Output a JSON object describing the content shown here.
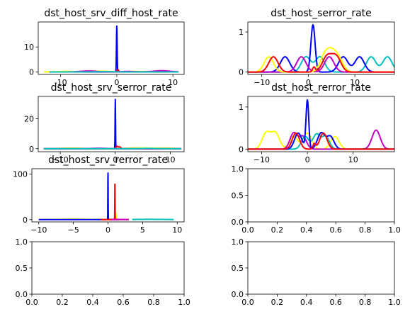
{
  "chart_data": [
    {
      "type": "line",
      "title": "dst_host_srv_diff_host_rate",
      "xlim": [
        -14,
        12
      ],
      "ylim": [
        -1,
        20
      ],
      "x_ticks": [
        -10,
        0,
        10
      ],
      "x_ticklabels": [
        "-10",
        "0",
        "10"
      ],
      "y_ticks": [
        0,
        10
      ],
      "y_ticklabels": [
        "0",
        "10"
      ],
      "series": [
        {
          "color": "#0000ff",
          "kind": "gauss",
          "peaks": [
            {
              "mu": 0.0,
              "sigma": 0.06,
              "amp": 18.5
            }
          ],
          "range": [
            -12,
            11
          ]
        },
        {
          "color": "#ffff00",
          "kind": "gauss",
          "peaks": [
            {
              "mu": -9,
              "sigma": 1.6,
              "amp": 0.2
            },
            {
              "mu": -3,
              "sigma": 1.6,
              "amp": 0.3
            },
            {
              "mu": 3,
              "sigma": 1.6,
              "amp": 0.2
            },
            {
              "mu": 8,
              "sigma": 1.6,
              "amp": 0.2
            }
          ],
          "range": [
            -13,
            11
          ]
        },
        {
          "color": "#ff0000",
          "kind": "gauss",
          "peaks": [
            {
              "mu": 0.2,
              "sigma": 0.15,
              "amp": 0.9
            },
            {
              "mu": -4,
              "sigma": 1.5,
              "amp": 0.15
            }
          ],
          "range": [
            -12,
            11
          ]
        },
        {
          "color": "#c000c0",
          "kind": "gauss",
          "peaks": [
            {
              "mu": -5,
              "sigma": 1.4,
              "amp": 0.4
            },
            {
              "mu": 8,
              "sigma": 1.4,
              "amp": 0.5
            },
            {
              "mu": 2,
              "sigma": 1.2,
              "amp": 0.2
            }
          ],
          "range": [
            -12,
            11
          ]
        },
        {
          "color": "#00bfbf",
          "kind": "gauss",
          "peaks": [
            {
              "mu": -2,
              "sigma": 1.5,
              "amp": 0.1
            }
          ],
          "range": [
            -12,
            11
          ]
        }
      ]
    },
    {
      "type": "line",
      "title": "dst_host_serror_rate",
      "xlim": [
        -13,
        18.5
      ],
      "ylim": [
        -0.06,
        1.25
      ],
      "x_ticks": [
        -10,
        0,
        10
      ],
      "x_ticklabels": [
        "−10",
        "0",
        "10"
      ],
      "y_ticks": [
        0,
        1
      ],
      "y_ticklabels": [
        "0",
        "1"
      ],
      "series": [
        {
          "color": "#00bfbf",
          "kind": "gauss",
          "peaks": [
            {
              "mu": -0.5,
              "sigma": 1.0,
              "amp": 0.38
            },
            {
              "mu": 2.5,
              "sigma": 1.0,
              "amp": 0.38
            },
            {
              "mu": 13.5,
              "sigma": 1.0,
              "amp": 0.38
            },
            {
              "mu": 17,
              "sigma": 1.0,
              "amp": 0.38
            }
          ],
          "range": [
            -13,
            18.5
          ]
        },
        {
          "color": "#0000ff",
          "kind": "gauss",
          "peaks": [
            {
              "mu": -5,
              "sigma": 1.0,
              "amp": 0.38
            },
            {
              "mu": 1,
              "sigma": 0.45,
              "amp": 1.18
            },
            {
              "mu": 7.5,
              "sigma": 1.0,
              "amp": 0.38
            },
            {
              "mu": 11,
              "sigma": 1.0,
              "amp": 0.38
            }
          ],
          "range": [
            -13,
            18.5
          ]
        },
        {
          "color": "#c000c0",
          "kind": "gauss",
          "peaks": [
            {
              "mu": -1.5,
              "sigma": 1.0,
              "amp": 0.38
            },
            {
              "mu": 4.5,
              "sigma": 1.0,
              "amp": 0.38
            }
          ],
          "range": [
            -13,
            18.5
          ]
        },
        {
          "color": "#ffff00",
          "kind": "gauss",
          "peaks": [
            {
              "mu": -8.5,
              "sigma": 1.0,
              "amp": 0.38
            },
            {
              "mu": 3.5,
              "sigma": 1.0,
              "amp": 0.38
            },
            {
              "mu": 5,
              "sigma": 1.0,
              "amp": 0.38
            },
            {
              "mu": 6.5,
              "sigma": 1.0,
              "amp": 0.3
            }
          ],
          "range": [
            -13,
            18.5
          ]
        },
        {
          "color": "#ff0000",
          "kind": "gauss",
          "peaks": [
            {
              "mu": -7.5,
              "sigma": 1.0,
              "amp": 0.38
            },
            {
              "mu": 1.2,
              "sigma": 0.3,
              "amp": 0.12
            },
            {
              "mu": 4,
              "sigma": 1.0,
              "amp": 0.38
            },
            {
              "mu": 6,
              "sigma": 1.0,
              "amp": 0.38
            }
          ],
          "range": [
            -13,
            18.5
          ]
        }
      ]
    },
    {
      "type": "line",
      "title": "dst_host_srv_serror_rate",
      "xlim": [
        -14,
        12.5
      ],
      "ylim": [
        -2,
        35
      ],
      "x_ticks": [
        -10,
        0,
        10
      ],
      "x_ticklabels": [
        "−10",
        "0",
        "10"
      ],
      "y_ticks": [
        0,
        20
      ],
      "y_ticklabels": [
        "0",
        "20"
      ],
      "series": [
        {
          "color": "#0000ff",
          "kind": "gauss",
          "peaks": [
            {
              "mu": 0.0,
              "sigma": 0.04,
              "amp": 33
            }
          ],
          "range": [
            -13,
            12
          ]
        },
        {
          "color": "#ffff00",
          "kind": "gauss",
          "peaks": [
            {
              "mu": -8,
              "sigma": 2.0,
              "amp": 0.4
            },
            {
              "mu": 4,
              "sigma": 2.0,
              "amp": 0.5
            },
            {
              "mu": 9,
              "sigma": 2.0,
              "amp": 0.4
            }
          ],
          "range": [
            -13,
            12
          ]
        },
        {
          "color": "#ff0000",
          "kind": "gauss",
          "peaks": [
            {
              "mu": 0.3,
              "sigma": 0.2,
              "amp": 1.6
            },
            {
              "mu": 0.8,
              "sigma": 0.2,
              "amp": 1.2
            }
          ],
          "range": [
            -13,
            12
          ]
        },
        {
          "color": "#c000c0",
          "kind": "gauss",
          "peaks": [
            {
              "mu": -3,
              "sigma": 1.5,
              "amp": 0.3
            }
          ],
          "range": [
            -13,
            12
          ]
        },
        {
          "color": "#00bfbf",
          "kind": "gauss",
          "peaks": [
            {
              "mu": 6,
              "sigma": 1.5,
              "amp": 0.2
            }
          ],
          "range": [
            -13,
            12
          ]
        }
      ]
    },
    {
      "type": "line",
      "title": "dst_host_rerror_rate",
      "xlim": [
        -13,
        19
      ],
      "ylim": [
        -0.06,
        1.25
      ],
      "x_ticks": [
        -10,
        0,
        10
      ],
      "x_ticklabels": [
        "−10",
        "0",
        "10"
      ],
      "y_ticks": [
        0,
        1
      ],
      "y_ticklabels": [
        "0",
        "1"
      ],
      "series": [
        {
          "color": "#ffff00",
          "kind": "gauss",
          "peaks": [
            {
              "mu": -9,
              "sigma": 0.9,
              "amp": 0.38
            },
            {
              "mu": -7,
              "sigma": 0.9,
              "amp": 0.38
            },
            {
              "mu": -3,
              "sigma": 0.9,
              "amp": 0.3
            },
            {
              "mu": 0,
              "sigma": 0.9,
              "amp": 0.38
            },
            {
              "mu": 6,
              "sigma": 0.9,
              "amp": 0.3
            }
          ],
          "range": [
            -13,
            19
          ]
        },
        {
          "color": "#c000c0",
          "kind": "gauss",
          "peaks": [
            {
              "mu": -3,
              "sigma": 0.8,
              "amp": 0.38
            },
            {
              "mu": -1,
              "sigma": 0.8,
              "amp": 0.3
            },
            {
              "mu": 15,
              "sigma": 0.9,
              "amp": 0.45
            }
          ],
          "range": [
            -13,
            19
          ]
        },
        {
          "color": "#00bfbf",
          "kind": "gauss",
          "peaks": [
            {
              "mu": -0.5,
              "sigma": 0.8,
              "amp": 0.3
            },
            {
              "mu": 2,
              "sigma": 0.8,
              "amp": 0.35
            },
            {
              "mu": 4,
              "sigma": 0.8,
              "amp": 0.3
            }
          ],
          "range": [
            -13,
            19
          ]
        },
        {
          "color": "#0000ff",
          "kind": "gauss",
          "peaks": [
            {
              "mu": 0,
              "sigma": 0.3,
              "amp": 1.15
            },
            {
              "mu": -2,
              "sigma": 0.8,
              "amp": 0.38
            },
            {
              "mu": 3,
              "sigma": 0.8,
              "amp": 0.38
            },
            {
              "mu": 5,
              "sigma": 0.8,
              "amp": 0.3
            }
          ],
          "range": [
            -13,
            19
          ]
        },
        {
          "color": "#ff0000",
          "kind": "gauss",
          "peaks": [
            {
              "mu": -2.5,
              "sigma": 0.8,
              "amp": 0.38
            },
            {
              "mu": 1.5,
              "sigma": 0.3,
              "amp": 0.12
            },
            {
              "mu": 3.5,
              "sigma": 0.8,
              "amp": 0.38
            }
          ],
          "range": [
            -13,
            19
          ]
        }
      ]
    },
    {
      "type": "line",
      "title": "dst_host_srv_rerror_rate",
      "xlim": [
        -11,
        11
      ],
      "ylim": [
        -5,
        112
      ],
      "x_ticks": [
        -10,
        -5,
        0,
        5,
        10
      ],
      "x_ticklabels": [
        "−10",
        "−5",
        "0",
        "5",
        "10"
      ],
      "y_ticks": [
        0,
        100
      ],
      "y_ticklabels": [
        "0",
        "100"
      ],
      "series": [
        {
          "color": "#ffff00",
          "kind": "gauss",
          "peaks": [
            {
              "mu": -5,
              "sigma": 3.0,
              "amp": 1.0
            },
            {
              "mu": 1.1,
              "sigma": 0.1,
              "amp": 14
            }
          ],
          "range": [
            -10,
            1.3
          ]
        },
        {
          "color": "#0000ff",
          "kind": "gauss",
          "peaks": [
            {
              "mu": 0.0,
              "sigma": 0.02,
              "amp": 106
            }
          ],
          "range": [
            -10,
            1.5
          ]
        },
        {
          "color": "#ff0000",
          "kind": "gauss",
          "peaks": [
            {
              "mu": 1.0,
              "sigma": 0.02,
              "amp": 78
            }
          ],
          "range": [
            -1,
            3
          ]
        },
        {
          "color": "#c000c0",
          "kind": "gauss",
          "peaks": [
            {
              "mu": 2,
              "sigma": 0.6,
              "amp": 0.3
            }
          ],
          "range": [
            0.5,
            3
          ]
        },
        {
          "color": "#00bfbf",
          "kind": "gauss",
          "peaks": [
            {
              "mu": 6,
              "sigma": 2.0,
              "amp": 0.6
            }
          ],
          "range": [
            3.5,
            9.5
          ]
        }
      ]
    },
    {
      "type": "line",
      "title": "",
      "xlim": [
        0,
        1
      ],
      "ylim": [
        0,
        1
      ],
      "x_ticks": [
        0,
        0.2,
        0.4,
        0.6,
        0.8,
        1.0
      ],
      "x_ticklabels": [
        "0.0",
        "0.2",
        "0.4",
        "0.6",
        "0.8",
        "1.0"
      ],
      "y_ticks": [
        0,
        0.5,
        1.0
      ],
      "y_ticklabels": [
        "0.0",
        "0.5",
        "1.0"
      ],
      "series": []
    },
    {
      "type": "line",
      "title": "",
      "xlim": [
        0,
        1
      ],
      "ylim": [
        0,
        1
      ],
      "x_ticks": [
        0,
        0.2,
        0.4,
        0.6,
        0.8,
        1.0
      ],
      "x_ticklabels": [
        "0.0",
        "0.2",
        "0.4",
        "0.6",
        "0.8",
        "1.0"
      ],
      "y_ticks": [
        0,
        0.5,
        1.0
      ],
      "y_ticklabels": [
        "0.0",
        "0.5",
        "1.0"
      ],
      "series": []
    },
    {
      "type": "line",
      "title": "",
      "xlim": [
        0,
        1
      ],
      "ylim": [
        0,
        1
      ],
      "x_ticks": [
        0,
        0.2,
        0.4,
        0.6,
        0.8,
        1.0
      ],
      "x_ticklabels": [
        "0.0",
        "0.2",
        "0.4",
        "0.6",
        "0.8",
        "1.0"
      ],
      "y_ticks": [
        0,
        0.5,
        1.0
      ],
      "y_ticklabels": [
        "0.0",
        "0.5",
        "1.0"
      ],
      "series": []
    }
  ]
}
